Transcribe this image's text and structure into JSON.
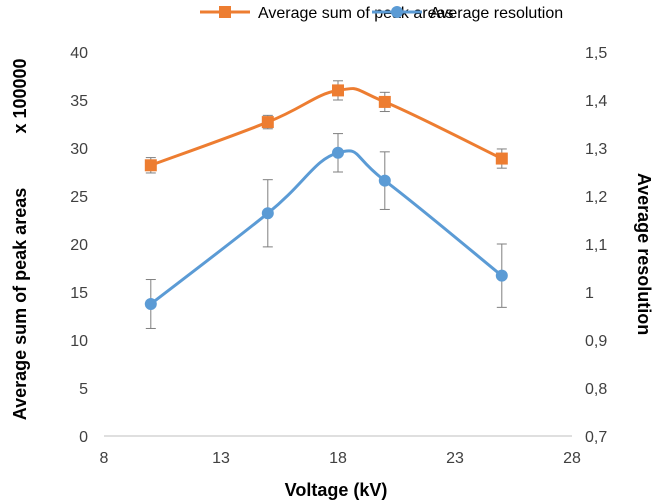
{
  "chart_data": {
    "type": "line",
    "x_axis": {
      "label": "Voltage (kV)",
      "min": 8,
      "max": 28,
      "ticks": [
        8,
        13,
        18,
        23,
        28
      ],
      "tick_labels": [
        "8",
        "13",
        "18",
        "23",
        "28"
      ]
    },
    "y_axis_left": {
      "label_main": "Average sum of peak areas",
      "label_multiplier": "x 100000",
      "min": 0,
      "max": 40,
      "ticks": [
        0,
        5,
        10,
        15,
        20,
        25,
        30,
        35,
        40
      ],
      "tick_labels": [
        "0",
        "5",
        "10",
        "15",
        "20",
        "25",
        "30",
        "35",
        "40"
      ]
    },
    "y_axis_right": {
      "label": "Average resolution",
      "min": 0.7,
      "max": 1.5,
      "ticks": [
        0.7,
        0.8,
        0.9,
        1.0,
        1.1,
        1.2,
        1.3,
        1.4,
        1.5
      ],
      "tick_labels": [
        "0,7",
        "0,8",
        "0,9",
        "1",
        "1,1",
        "1,2",
        "1,3",
        "1,4",
        "1,5"
      ]
    },
    "series": [
      {
        "name": "Average sum of peak areas",
        "axis": "left",
        "marker": "square",
        "color": "#ED7D31",
        "x": [
          10,
          15,
          18,
          20,
          25
        ],
        "y": [
          28.2,
          32.7,
          36.0,
          34.8,
          28.9
        ],
        "error": [
          0.8,
          0.7,
          1.0,
          1.0,
          1.0
        ]
      },
      {
        "name": "Average resolution",
        "axis": "right",
        "marker": "circle",
        "color": "#5B9BD5",
        "x": [
          10,
          15,
          18,
          20,
          25
        ],
        "y": [
          0.975,
          1.164,
          1.29,
          1.232,
          1.034
        ],
        "error": [
          0.051,
          0.07,
          0.04,
          0.06,
          0.066
        ]
      }
    ],
    "legend": {
      "position": "top"
    },
    "grid": false
  }
}
